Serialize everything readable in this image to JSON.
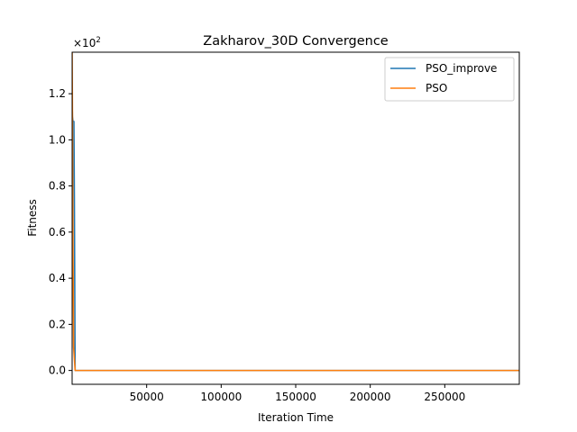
{
  "chart_data": {
    "type": "line",
    "title": "Zakharov_30D Convergence",
    "xlabel": "Iteration Time",
    "ylabel": "Fitness",
    "y_scale_label": "×10",
    "y_scale_exp": "2",
    "xlim": [
      0,
      300000
    ],
    "ylim": [
      -0.06,
      1.38
    ],
    "x_ticks": [
      50000,
      100000,
      150000,
      200000,
      250000
    ],
    "x_tick_labels": [
      "50000",
      "100000",
      "150000",
      "200000",
      "250000"
    ],
    "y_ticks": [
      0.0,
      0.2,
      0.4,
      0.6,
      0.8,
      1.0,
      1.2
    ],
    "y_tick_labels": [
      "0.0",
      "0.2",
      "0.4",
      "0.6",
      "0.8",
      "1.0",
      "1.2"
    ],
    "grid": false,
    "legend_position": "top-right",
    "series": [
      {
        "name": "PSO_improve",
        "color": "#1f77b4",
        "x": [
          0,
          200,
          400,
          600,
          800,
          1000,
          1200,
          1500,
          2000,
          300000
        ],
        "y": [
          1.18,
          1.1,
          1.09,
          1.08,
          1.08,
          1.08,
          1.08,
          0.75,
          0.0,
          0.0
        ]
      },
      {
        "name": "PSO",
        "color": "#ff7f0e",
        "x": [
          0,
          100,
          300,
          600,
          1000,
          2000,
          300000
        ],
        "y": [
          1.38,
          1.25,
          1.0,
          0.5,
          0.1,
          0.0,
          0.0
        ]
      }
    ]
  }
}
